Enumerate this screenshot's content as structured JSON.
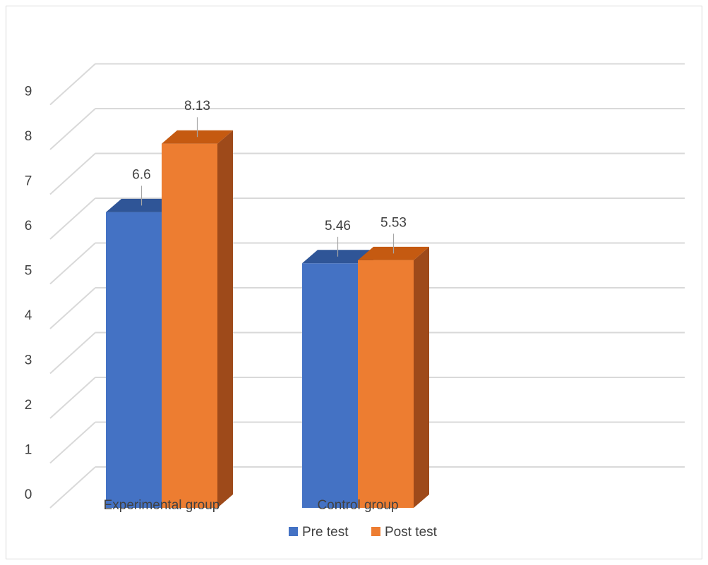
{
  "chart_data": {
    "type": "bar",
    "style": "3d-clustered-column",
    "title": "",
    "xlabel": "",
    "ylabel": "",
    "categories": [
      "Experimental group",
      "Control group"
    ],
    "series": [
      {
        "name": "Pre test",
        "values": [
          6.6,
          5.46
        ],
        "color": "#4472C4",
        "top_color": "#2F5597",
        "side_color": "#2F5597"
      },
      {
        "name": "Post test",
        "values": [
          8.13,
          5.53
        ],
        "color": "#ED7D31",
        "top_color": "#C55A11",
        "side_color": "#9E4A1A"
      }
    ],
    "y_ticks": [
      "0",
      "1",
      "2",
      "3",
      "4",
      "5",
      "6",
      "7",
      "8",
      "9"
    ],
    "data_labels": [
      [
        "6.6",
        "5.46"
      ],
      [
        "8.13",
        "5.53"
      ]
    ],
    "ylim": [
      0,
      9
    ],
    "grid": true,
    "legend_position": "bottom",
    "gridline_color": "#d9d9d9",
    "text_color": "#404040"
  }
}
